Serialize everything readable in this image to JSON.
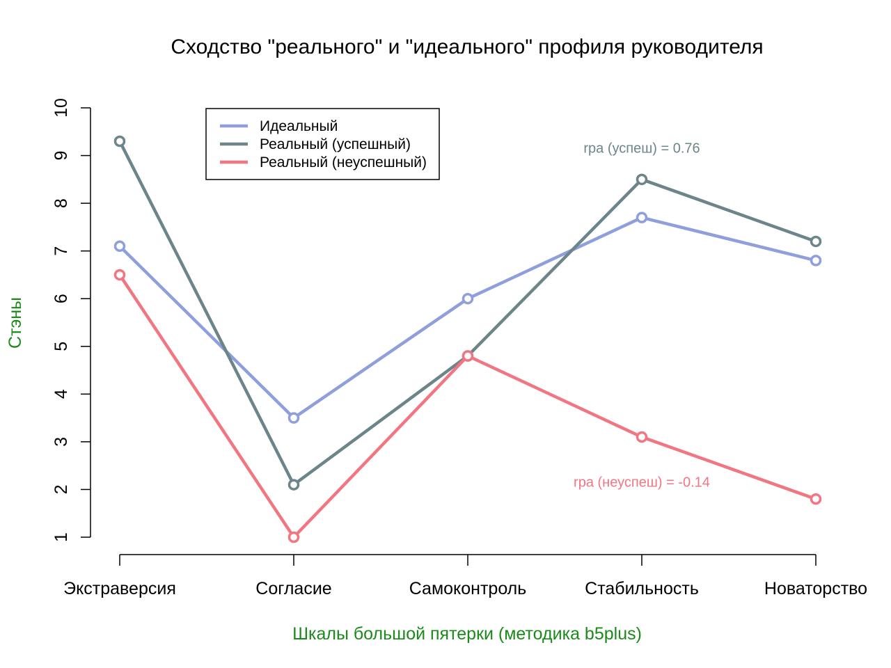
{
  "chart_data": {
    "type": "line",
    "title": "Сходство \"реального\" и \"идеального\" профиля руководителя",
    "xlabel": "Шкалы большой пятерки (методика b5plus)",
    "ylabel": "Стэны",
    "categories": [
      "Экстраверсия",
      "Согласие",
      "Самоконтроль",
      "Стабильность",
      "Новаторство"
    ],
    "y_ticks": [
      "1",
      "2",
      "3",
      "4",
      "5",
      "6",
      "7",
      "8",
      "9",
      "10"
    ],
    "ylim": [
      1,
      10
    ],
    "grid": false,
    "legend_position": "top-left",
    "label_color": "#1a8a1a",
    "series": [
      {
        "name": "Идеальный",
        "color": "#8f9fdb",
        "values": [
          7.1,
          3.5,
          6.0,
          7.7,
          6.8
        ]
      },
      {
        "name": "Реальный (успешный)",
        "color": "#6b858a",
        "values": [
          9.3,
          2.1,
          4.8,
          8.5,
          7.2
        ]
      },
      {
        "name": "Реальный (неуспешный)",
        "color": "#f27682",
        "values": [
          6.5,
          1.0,
          4.8,
          3.1,
          1.8
        ]
      }
    ],
    "annotations": [
      {
        "text": "rpa (успеш) =  0.76",
        "color": "#6b858a",
        "x": 3.0,
        "y": 9.0
      },
      {
        "text": "rpa (неуспеш) =  -0.14",
        "color": "#f27682",
        "x": 3.0,
        "y": 2.0
      }
    ]
  }
}
